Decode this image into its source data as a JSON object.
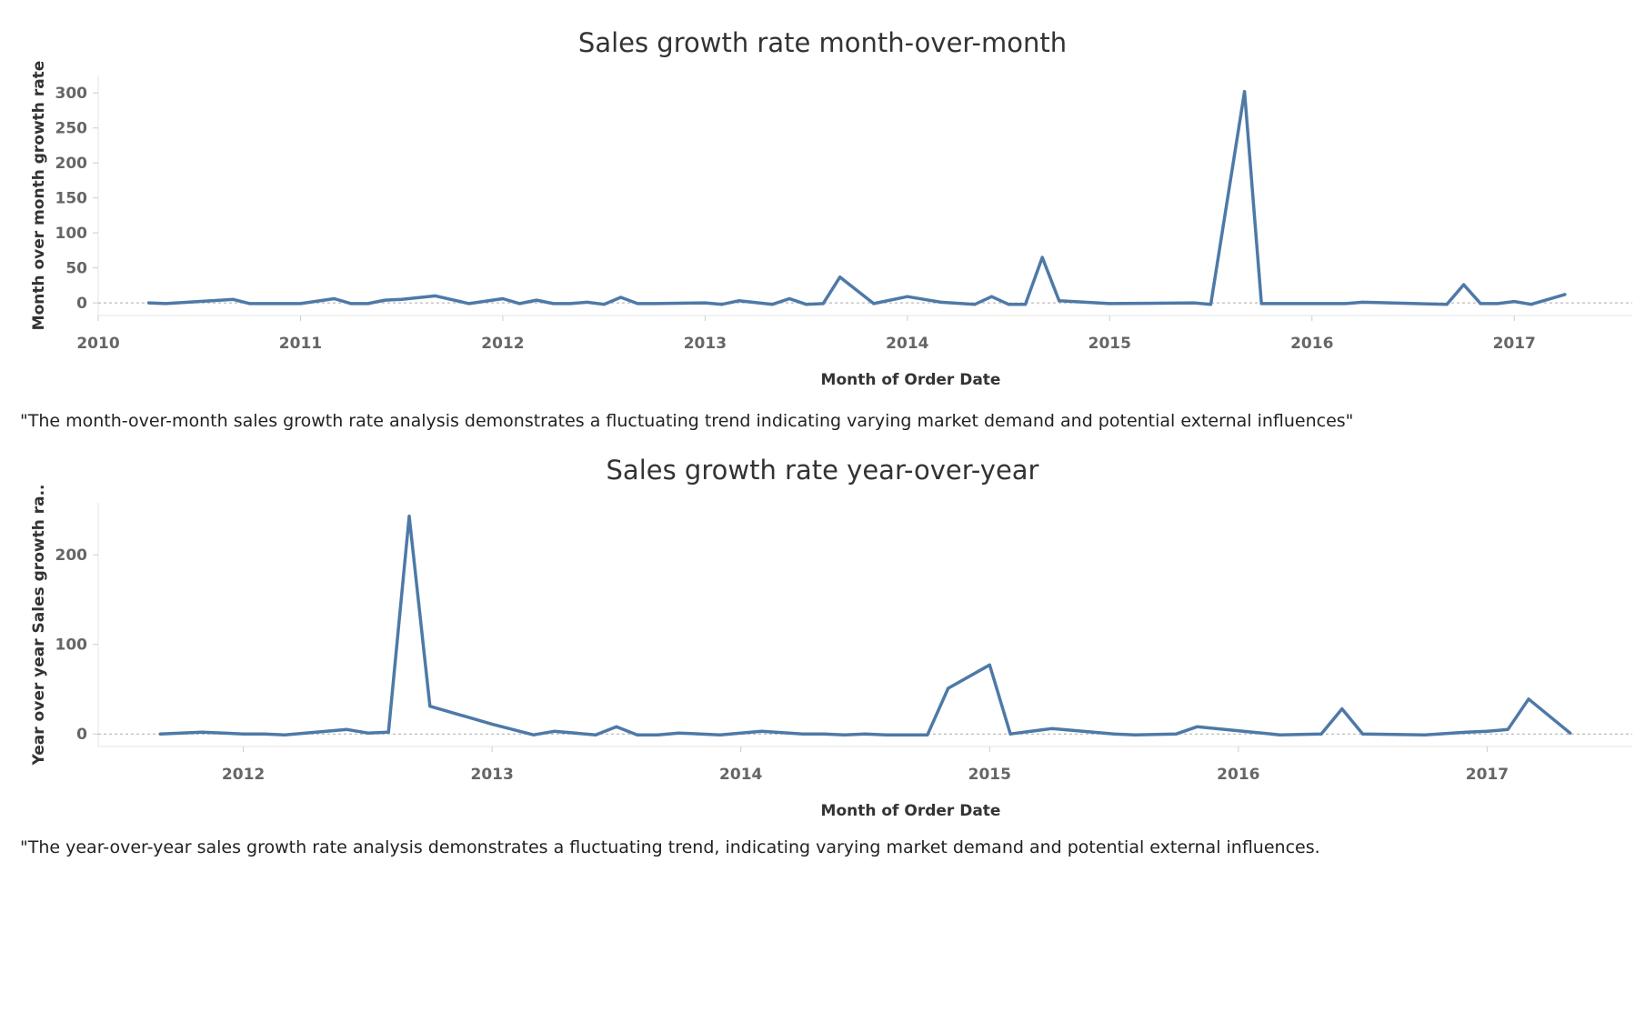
{
  "colors": {
    "line": "#4e79a7",
    "zero_line": "#aaaaaa",
    "tick_text": "#666666"
  },
  "chart_data": [
    {
      "type": "line",
      "title": "Sales growth rate month-over-month",
      "xlabel": "Month of Order Date",
      "ylabel": "Month over month growth rate",
      "x_ticks": [
        "2010",
        "2011",
        "2012",
        "2013",
        "2014",
        "2015",
        "2016",
        "2017"
      ],
      "y_ticks": [
        0,
        50,
        100,
        150,
        200,
        250,
        300
      ],
      "xlim": [
        "2010-01",
        "2017-08"
      ],
      "ylim": [
        -18,
        325
      ],
      "zero_line": true,
      "series": [
        {
          "x": [
            "2010-04",
            "2010-05",
            "2010-09",
            "2010-10",
            "2010-11",
            "2011-01",
            "2011-03",
            "2011-04",
            "2011-05",
            "2011-06",
            "2011-07",
            "2011-09",
            "2011-11",
            "2012-01",
            "2012-02",
            "2012-03",
            "2012-04",
            "2012-05",
            "2012-06",
            "2012-07",
            "2012-08",
            "2012-09",
            "2012-10",
            "2013-01",
            "2013-02",
            "2013-03",
            "2013-05",
            "2013-06",
            "2013-07",
            "2013-08",
            "2013-09",
            "2013-11",
            "2014-01",
            "2014-03",
            "2014-05",
            "2014-06",
            "2014-07",
            "2014-08",
            "2014-09",
            "2014-10",
            "2015-01",
            "2015-06",
            "2015-07",
            "2015-09",
            "2015-10",
            "2016-03",
            "2016-04",
            "2016-09",
            "2016-10",
            "2016-11",
            "2016-12",
            "2017-01",
            "2017-02",
            "2017-04"
          ],
          "values": [
            0,
            -1,
            5,
            -1,
            -1,
            -1,
            6,
            -1,
            -1,
            4,
            5,
            10,
            -1,
            6,
            -1,
            4,
            -1,
            -1,
            1,
            -2,
            8,
            -1,
            -1,
            0,
            -2,
            3,
            -2,
            6,
            -2,
            -1,
            37,
            -1,
            9,
            1,
            -2,
            9,
            -2,
            -2,
            65,
            3,
            -1,
            0,
            -2,
            302,
            -1,
            -1,
            1,
            -2,
            26,
            -1,
            -1,
            2,
            -2,
            12
          ]
        }
      ]
    },
    {
      "type": "line",
      "title": "Sales growth rate year-over-year",
      "xlabel": "Month of Order Date",
      "ylabel": "Year over year Sales growth ra..",
      "x_ticks": [
        "2012",
        "2013",
        "2014",
        "2015",
        "2016",
        "2017"
      ],
      "y_ticks": [
        0,
        100,
        200
      ],
      "xlim": [
        "2011-06",
        "2017-08"
      ],
      "ylim": [
        -14,
        258
      ],
      "zero_line": true,
      "series": [
        {
          "x": [
            "2011-09",
            "2011-11",
            "2012-01",
            "2012-02",
            "2012-03",
            "2012-06",
            "2012-07",
            "2012-08",
            "2012-09",
            "2012-10",
            "2013-01",
            "2013-03",
            "2013-04",
            "2013-06",
            "2013-07",
            "2013-08",
            "2013-09",
            "2013-10",
            "2013-12",
            "2014-02",
            "2014-04",
            "2014-05",
            "2014-06",
            "2014-07",
            "2014-08",
            "2014-10",
            "2014-11",
            "2015-01",
            "2015-02",
            "2015-04",
            "2015-07",
            "2015-08",
            "2015-10",
            "2015-11",
            "2016-03",
            "2016-05",
            "2016-06",
            "2016-07",
            "2016-10",
            "2016-12",
            "2017-01",
            "2017-02",
            "2017-03",
            "2017-05"
          ],
          "values": [
            0,
            2,
            0,
            0,
            -1,
            5,
            1,
            2,
            243,
            31,
            11,
            -1,
            3,
            -1,
            8,
            -1,
            -1,
            1,
            -1,
            3,
            0,
            0,
            -1,
            0,
            -1,
            -1,
            51,
            77,
            0,
            6,
            0,
            -1,
            0,
            8,
            -1,
            0,
            28,
            0,
            -1,
            2,
            3,
            5,
            39,
            1
          ]
        }
      ]
    }
  ],
  "captions": [
    "\"The month-over-month sales growth rate analysis demonstrates a fluctuating trend indicating varying market demand and potential external influences\"",
    "\"The year-over-year sales growth rate analysis demonstrates a fluctuating trend, indicating varying market demand and potential external influences."
  ]
}
